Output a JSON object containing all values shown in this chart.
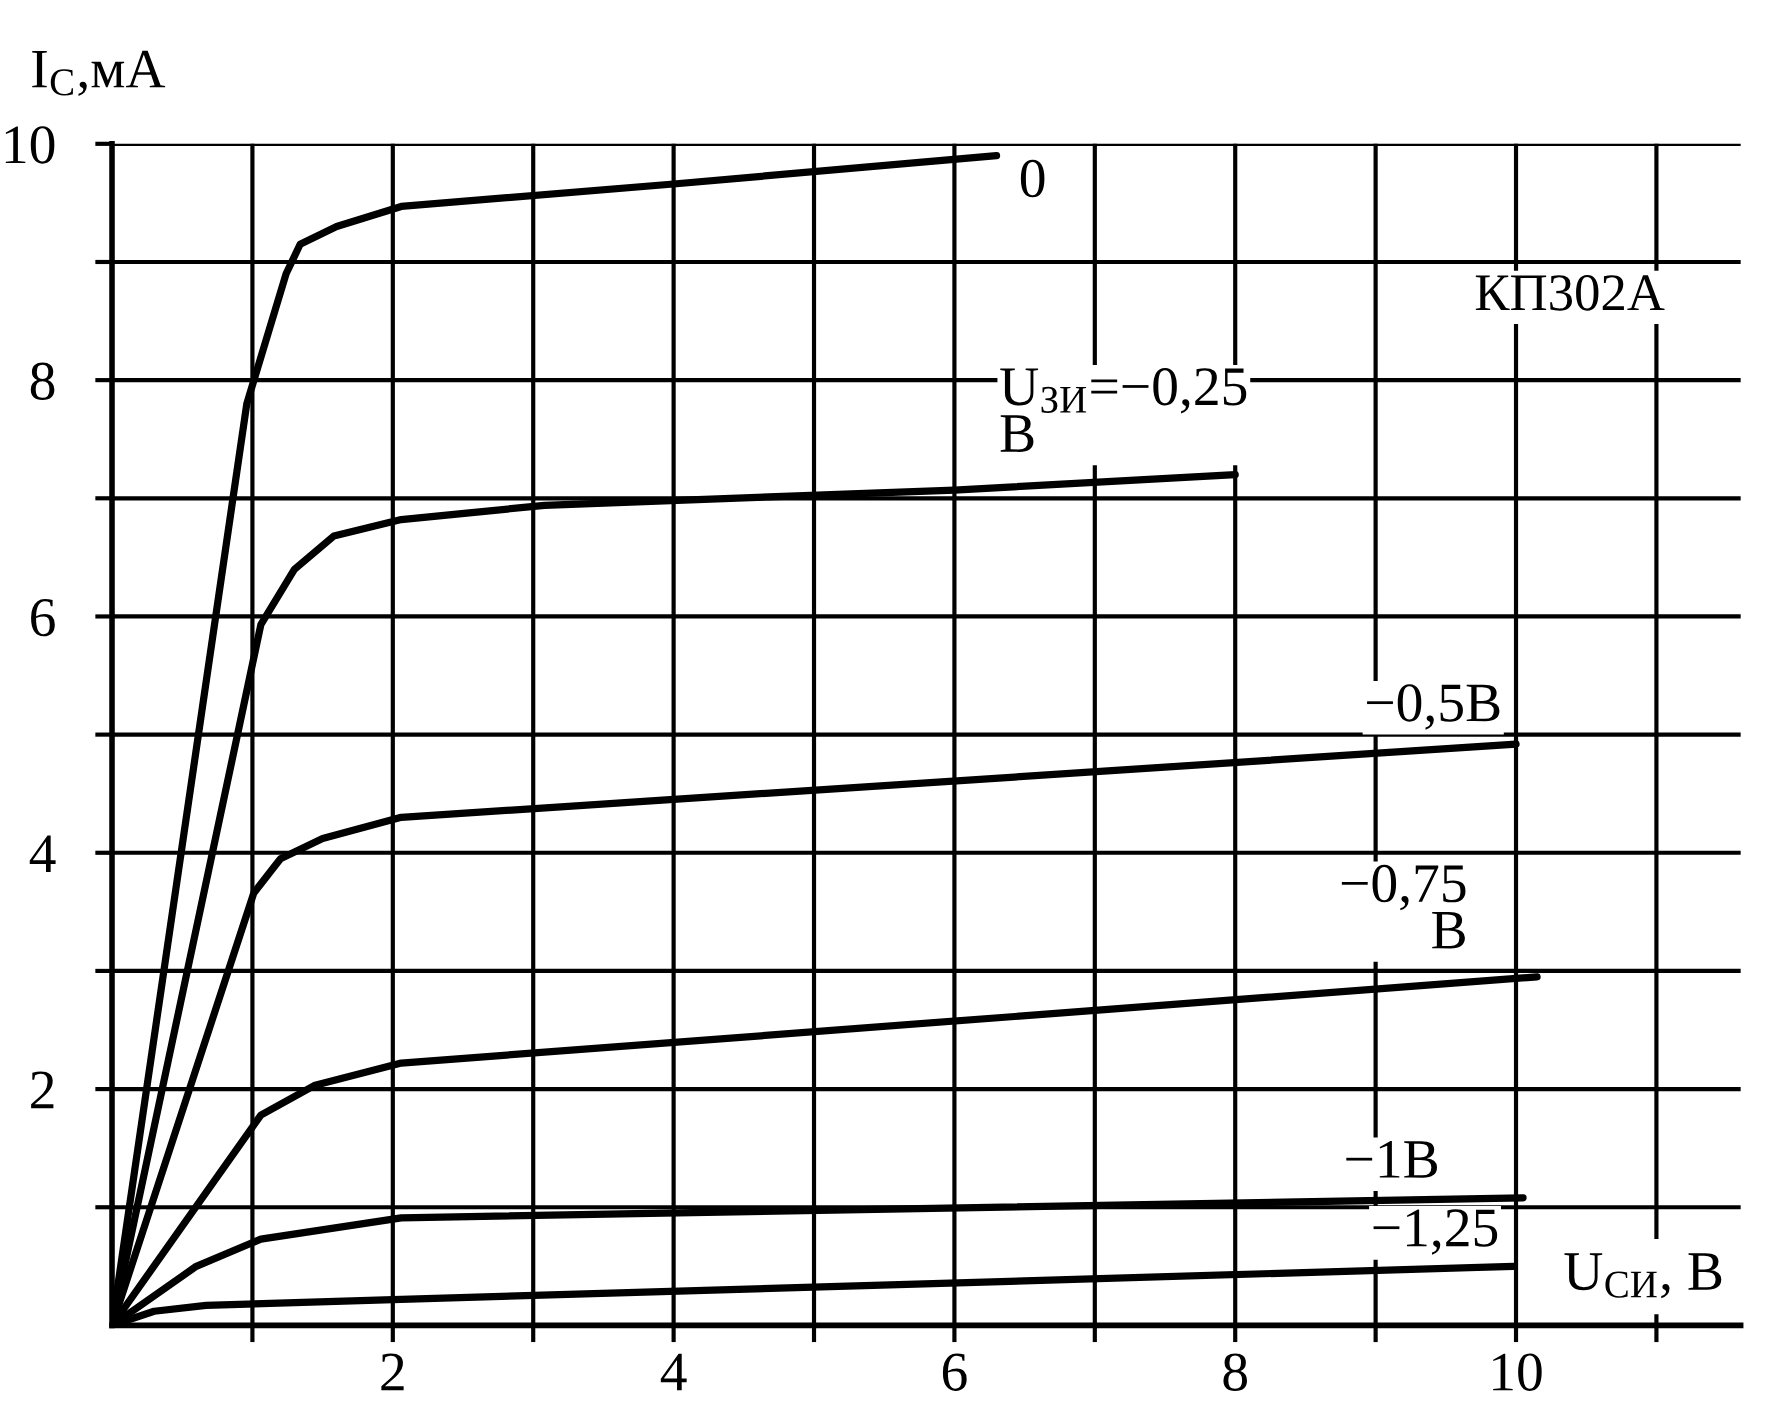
{
  "chart_data": {
    "type": "line",
    "xlabel": "U$_{СИ}$, В",
    "ylabel": "I$_{С}$,мА",
    "xlim": [
      0,
      11.6
    ],
    "ylim": [
      0,
      10
    ],
    "xticks": [
      {
        "value": 1,
        "label": null
      },
      2,
      {
        "value": 3,
        "label": null
      },
      4,
      {
        "value": 5,
        "label": null
      },
      6,
      {
        "value": 7,
        "label": null
      },
      8,
      {
        "value": 9,
        "label": null
      },
      10,
      {
        "value": 11,
        "label": null
      }
    ],
    "yticks": [
      {
        "value": 1,
        "label": null
      },
      2,
      {
        "value": 3,
        "label": null
      },
      4,
      {
        "value": 5,
        "label": null
      },
      6,
      {
        "value": 7,
        "label": null
      },
      8,
      {
        "value": 9,
        "label": null
      },
      10
    ],
    "grid": true,
    "marker": "none",
    "line_style": "solid",
    "series": [
      {
        "name": "0",
        "color": "#000000",
        "x": [
          0,
          0.96,
          1.24,
          1.34,
          1.6,
          2.06,
          4,
          6.3
        ],
        "values": [
          0,
          7.8,
          8.9,
          9.15,
          9.3,
          9.47,
          9.66,
          9.9
        ]
      },
      {
        "name": "U$_{ЗИ}$=−0,25\nВ",
        "color": "#000000",
        "x": [
          0,
          1.06,
          1.3,
          1.58,
          2.06,
          3.08,
          6,
          8
        ],
        "values": [
          0,
          5.93,
          6.4,
          6.68,
          6.82,
          6.94,
          7.07,
          7.2
        ]
      },
      {
        "name": "−0,5В",
        "color": "#000000",
        "x": [
          0,
          1.01,
          1.2,
          1.5,
          2.06,
          10
        ],
        "values": [
          0,
          3.66,
          3.95,
          4.12,
          4.3,
          4.92
        ]
      },
      {
        "name": "−0,75\nВ",
        "color": "#000000",
        "x": [
          0,
          1.06,
          1.44,
          2.06,
          10.15
        ],
        "values": [
          0,
          1.78,
          2.03,
          2.22,
          2.95
        ]
      },
      {
        "name": "−1В",
        "color": "#000000",
        "x": [
          0,
          0.6,
          1.06,
          2.06,
          10.05
        ],
        "values": [
          0,
          0.5,
          0.73,
          0.91,
          1.08
        ]
      },
      {
        "name": "−1,25",
        "color": "#000000",
        "x": [
          0,
          0.3,
          0.67,
          2.06,
          9.98
        ],
        "values": [
          0,
          0.12,
          0.17,
          0.22,
          0.5
        ]
      }
    ],
    "annotations": [
      "КП302А"
    ]
  }
}
